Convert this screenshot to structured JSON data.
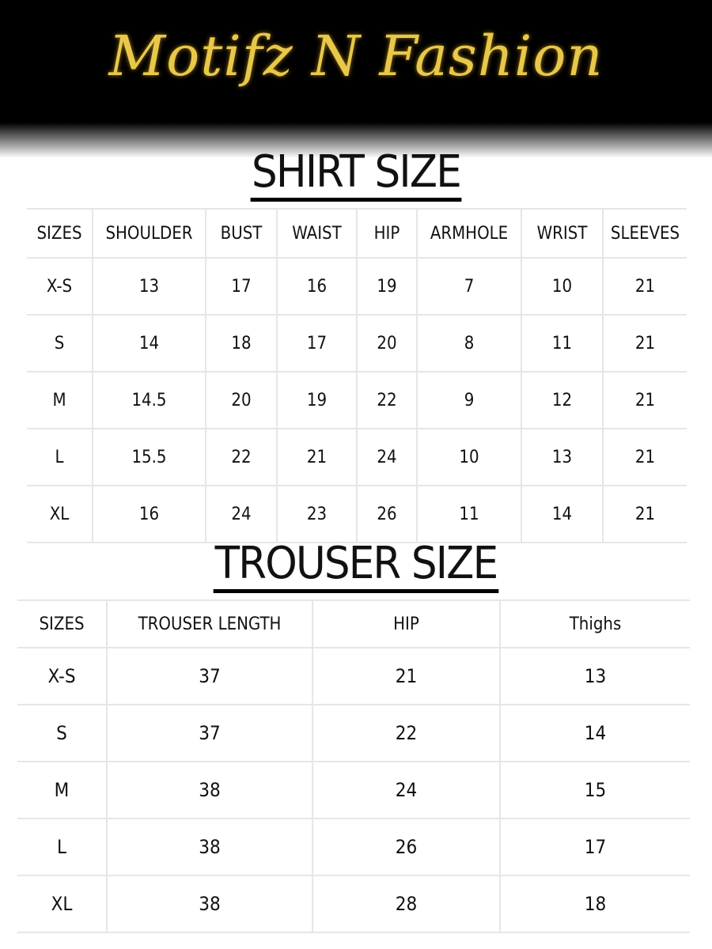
{
  "brand": "Motifz N Fashion",
  "shirt": {
    "title": "SHIRT SIZE",
    "headers": [
      "SIZES",
      "SHOULDER",
      "BUST",
      "WAIST",
      "HIP",
      "ARMHOLE",
      "WRIST",
      "SLEEVES"
    ],
    "rows": [
      [
        "X-S",
        "13",
        "17",
        "16",
        "19",
        "7",
        "10",
        "21"
      ],
      [
        "S",
        "14",
        "18",
        "17",
        "20",
        "8",
        "11",
        "21"
      ],
      [
        "M",
        "14.5",
        "20",
        "19",
        "22",
        "9",
        "12",
        "21"
      ],
      [
        "L",
        "15.5",
        "22",
        "21",
        "24",
        "10",
        "13",
        "21"
      ],
      [
        "XL",
        "16",
        "24",
        "23",
        "26",
        "11",
        "14",
        "21"
      ]
    ]
  },
  "trouser": {
    "title": "TROUSER SIZE",
    "headers": [
      "SIZES",
      "TROUSER LENGTH",
      "HIP",
      "Thighs"
    ],
    "rows": [
      [
        "X-S",
        "37",
        "21",
        "13"
      ],
      [
        "S",
        "37",
        "22",
        "14"
      ],
      [
        "M",
        "38",
        "24",
        "15"
      ],
      [
        "L",
        "38",
        "26",
        "17"
      ],
      [
        "XL",
        "38",
        "28",
        "18"
      ]
    ]
  },
  "colors": {
    "banner": "#000000",
    "logo_gold": "#e8c84a",
    "grid": "#e6e6e6"
  }
}
